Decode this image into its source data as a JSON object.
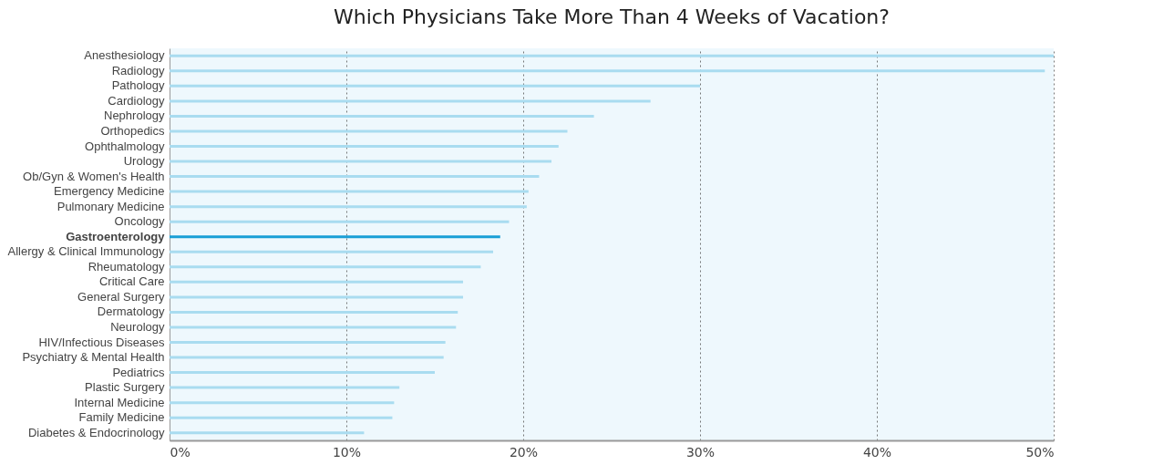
{
  "chart_data": {
    "type": "bar",
    "orientation": "horizontal",
    "title": "Which Physicians Take More Than 4 Weeks of Vacation?",
    "categories": [
      "Anesthesiology",
      "Radiology",
      "Pathology",
      "Cardiology",
      "Nephrology",
      "Orthopedics",
      "Ophthalmology",
      "Urology",
      "Ob/Gyn & Women's Health",
      "Emergency Medicine",
      "Pulmonary Medicine",
      "Oncology",
      "Gastroenterology",
      "Allergy & Clinical Immunology",
      "Rheumatology",
      "Critical Care",
      "General Surgery",
      "Dermatology",
      "Neurology",
      "HIV/Infectious Diseases",
      "Psychiatry & Mental Health",
      "Pediatrics",
      "Plastic Surgery",
      "Internal Medicine",
      "Family Medicine",
      "Diabetes & Endocrinology"
    ],
    "values": [
      50,
      49.5,
      30,
      27.2,
      24,
      22.5,
      22,
      21.6,
      20.9,
      20.3,
      20.2,
      19.2,
      18.7,
      18.3,
      17.6,
      16.6,
      16.6,
      16.3,
      16.2,
      15.6,
      15.5,
      15,
      13,
      12.7,
      12.6,
      11
    ],
    "colors": [
      "#a9dcf0",
      "#a9dcf0",
      "#a9dcf0",
      "#a9dcf0",
      "#a9dcf0",
      "#a9dcf0",
      "#a9dcf0",
      "#a9dcf0",
      "#a9dcf0",
      "#a9dcf0",
      "#a9dcf0",
      "#a9dcf0",
      "#1a9fd6",
      "#a9dcf0",
      "#a9dcf0",
      "#a9dcf0",
      "#a9dcf0",
      "#a9dcf0",
      "#a9dcf0",
      "#a9dcf0",
      "#a9dcf0",
      "#a9dcf0",
      "#a9dcf0",
      "#a9dcf0",
      "#a9dcf0",
      "#a9dcf0"
    ],
    "xlim": [
      0,
      50
    ],
    "xticks": [
      {
        "value": 0,
        "label": "0%"
      },
      {
        "value": 10,
        "label": "10%"
      },
      {
        "value": 20,
        "label": "20%"
      },
      {
        "value": 30,
        "label": "30%"
      },
      {
        "value": 40,
        "label": "40%"
      },
      {
        "value": 50,
        "label": "50%"
      }
    ],
    "grid": "x"
  }
}
